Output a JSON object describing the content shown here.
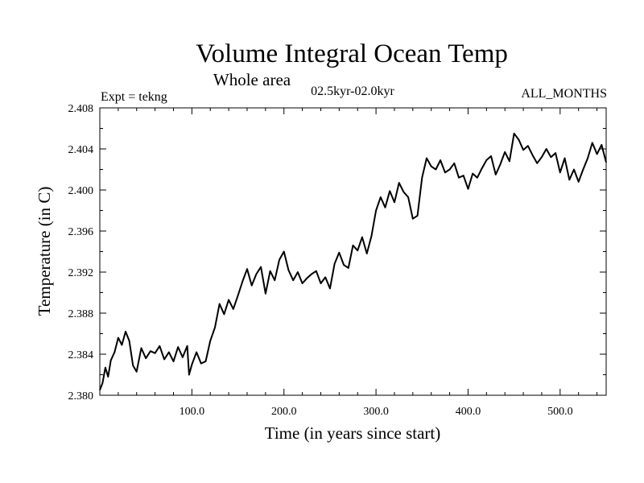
{
  "chart_data": {
    "type": "line",
    "title": "Volume Integral Ocean Temp",
    "subtitle": "Whole area",
    "period": "02.5kyr-02.0kyr",
    "experiment": "Expt = tekng",
    "season": "ALL_MONTHS",
    "xlabel": "Time (in years since start)",
    "ylabel": "Temperature (in C)",
    "xlim": [
      0,
      550
    ],
    "ylim": [
      2.38,
      2.408
    ],
    "x_ticks": [
      100,
      200,
      300,
      400,
      500
    ],
    "x_tick_labels": [
      "100.0",
      "200.0",
      "300.0",
      "400.0",
      "500.0"
    ],
    "y_ticks": [
      2.38,
      2.384,
      2.388,
      2.392,
      2.396,
      2.4,
      2.404,
      2.408
    ],
    "y_tick_labels": [
      "2.380",
      "2.384",
      "2.388",
      "2.392",
      "2.396",
      "2.400",
      "2.404",
      "2.408"
    ],
    "grid": false,
    "series": [
      {
        "name": "Volume integral ocean temperature",
        "color": "#000000",
        "x": [
          0,
          3,
          6,
          9,
          12,
          16,
          20,
          24,
          28,
          32,
          36,
          40,
          45,
          50,
          55,
          60,
          65,
          70,
          75,
          80,
          85,
          90,
          95,
          97,
          100,
          105,
          110,
          115,
          120,
          125,
          130,
          135,
          140,
          145,
          150,
          155,
          160,
          165,
          170,
          175,
          180,
          185,
          190,
          195,
          200,
          205,
          210,
          215,
          220,
          225,
          230,
          235,
          240,
          245,
          250,
          255,
          260,
          265,
          270,
          275,
          280,
          285,
          290,
          295,
          300,
          305,
          310,
          315,
          320,
          325,
          330,
          335,
          340,
          345,
          350,
          355,
          360,
          365,
          370,
          375,
          380,
          385,
          390,
          395,
          400,
          405,
          410,
          415,
          420,
          425,
          430,
          435,
          440,
          445,
          450,
          455,
          460,
          465,
          470,
          475,
          480,
          485,
          490,
          495,
          500,
          505,
          510,
          515,
          520,
          525,
          530,
          535,
          540,
          545,
          550
        ],
        "values": [
          2.3805,
          2.3812,
          2.3827,
          2.3818,
          2.3834,
          2.3842,
          2.3856,
          2.3849,
          2.3862,
          2.3853,
          2.3829,
          2.3823,
          2.3846,
          2.3836,
          2.3843,
          2.3841,
          2.3848,
          2.3835,
          2.3842,
          2.3833,
          2.3847,
          2.3837,
          2.3848,
          2.382,
          2.383,
          2.3842,
          2.3831,
          2.3833,
          2.3853,
          2.3866,
          2.3889,
          2.3879,
          2.3893,
          2.3884,
          2.3897,
          2.3911,
          2.3923,
          2.3907,
          2.3918,
          2.3925,
          2.3899,
          2.3921,
          2.3912,
          2.3932,
          2.394,
          2.3922,
          2.3912,
          2.392,
          2.3909,
          2.3914,
          2.3918,
          2.3921,
          2.3909,
          2.3915,
          2.3904,
          2.3928,
          2.3939,
          2.3927,
          2.3924,
          2.3946,
          2.3941,
          2.3954,
          2.3938,
          2.3955,
          2.398,
          2.3993,
          2.3983,
          2.3999,
          2.3988,
          2.4007,
          2.3998,
          2.3993,
          2.3972,
          2.3975,
          2.4012,
          2.4031,
          2.4023,
          2.402,
          2.4029,
          2.4017,
          2.402,
          2.4026,
          2.4012,
          2.4014,
          2.4001,
          2.4016,
          2.4012,
          2.4021,
          2.4029,
          2.4033,
          2.4015,
          2.4025,
          2.4037,
          2.4028,
          2.4055,
          2.4049,
          2.4039,
          2.4043,
          2.4034,
          2.4026,
          2.4032,
          2.404,
          2.4032,
          2.4036,
          2.4017,
          2.4031,
          2.401,
          2.402,
          2.4008,
          2.402,
          2.4031,
          2.4046,
          2.4035,
          2.4044,
          2.4027
        ]
      }
    ]
  }
}
